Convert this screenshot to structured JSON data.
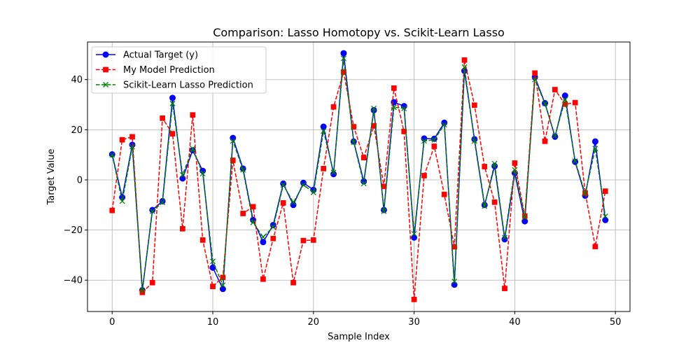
{
  "chart_data": {
    "type": "line",
    "title": "Comparison: Lasso Homotopy vs. Scikit-Learn Lasso",
    "xlabel": "Sample Index",
    "ylabel": "Target Value",
    "xlim": [
      -2.45,
      51.45
    ],
    "ylim": [
      -52.5,
      55
    ],
    "xticks": [
      0,
      10,
      20,
      30,
      40,
      50
    ],
    "yticks": [
      -40,
      -20,
      0,
      20,
      40
    ],
    "xtick_labels": [
      "0",
      "10",
      "20",
      "30",
      "40",
      "50"
    ],
    "ytick_labels": [
      "−40",
      "−20",
      "0",
      "20",
      "40"
    ],
    "grid": true,
    "legend_position": "upper-left",
    "x": [
      0,
      1,
      2,
      3,
      4,
      5,
      6,
      7,
      8,
      9,
      10,
      11,
      12,
      13,
      14,
      15,
      16,
      17,
      18,
      19,
      20,
      21,
      22,
      23,
      24,
      25,
      26,
      27,
      28,
      29,
      30,
      31,
      32,
      33,
      34,
      35,
      36,
      37,
      38,
      39,
      40,
      41,
      42,
      43,
      44,
      45,
      46,
      47,
      48,
      49
    ],
    "series": [
      {
        "name": "Actual Target (y)",
        "color": "#0000ff",
        "style": "solid",
        "marker": "circle",
        "values": [
          10.2,
          -7.0,
          14.0,
          -44.0,
          -12.0,
          -8.5,
          32.7,
          0.6,
          11.8,
          3.6,
          -35.0,
          -43.5,
          16.7,
          4.5,
          -16.0,
          -24.8,
          -18.0,
          -1.5,
          -10.0,
          -1.2,
          -4.0,
          21.2,
          2.3,
          50.5,
          15.3,
          -0.6,
          27.8,
          -12.0,
          31.0,
          29.4,
          -23.0,
          16.5,
          16.4,
          22.8,
          -41.8,
          43.5,
          16.2,
          -10.0,
          5.5,
          -23.7,
          2.7,
          -16.5,
          41.0,
          30.6,
          17.2,
          33.6,
          7.2,
          -6.3,
          15.3,
          -16.0
        ]
      },
      {
        "name": "My Model Prediction",
        "color": "#ff0000",
        "style": "dashed",
        "marker": "square",
        "values": [
          -12.2,
          16.0,
          17.2,
          -44.9,
          -41.0,
          24.6,
          18.4,
          -19.5,
          25.9,
          -24.0,
          -42.5,
          -38.9,
          7.8,
          -13.4,
          -10.7,
          -39.6,
          -23.4,
          -9.2,
          -41.0,
          -24.2,
          -24.0,
          4.5,
          29.1,
          43.0,
          21.2,
          8.9,
          21.6,
          -2.6,
          36.6,
          19.3,
          -47.7,
          1.7,
          13.4,
          -5.8,
          -26.7,
          47.8,
          29.8,
          5.3,
          -8.9,
          -43.3,
          6.7,
          -14.4,
          42.6,
          15.4,
          36.0,
          30.2,
          30.8,
          -5.2,
          -26.6,
          -4.5
        ]
      },
      {
        "name": "Scikit-Learn Lasso Prediction",
        "color": "#008000",
        "style": "dashed",
        "marker": "x",
        "values": [
          10.0,
          -8.5,
          13.2,
          -44.2,
          -12.5,
          -9.0,
          30.5,
          2.0,
          12.5,
          2.5,
          -32.5,
          -42.0,
          15.5,
          4.0,
          -17.0,
          -22.8,
          -18.8,
          -2.0,
          -9.0,
          -2.0,
          -5.0,
          19.5,
          3.0,
          48.5,
          15.0,
          -1.5,
          28.5,
          -12.5,
          29.0,
          28.5,
          -21.5,
          15.5,
          16.0,
          22.0,
          -40.5,
          45.0,
          15.5,
          -10.5,
          6.5,
          -23.0,
          4.0,
          -15.0,
          40.0,
          30.5,
          17.5,
          32.0,
          7.5,
          -5.5,
          12.5,
          -14.5
        ]
      }
    ]
  }
}
